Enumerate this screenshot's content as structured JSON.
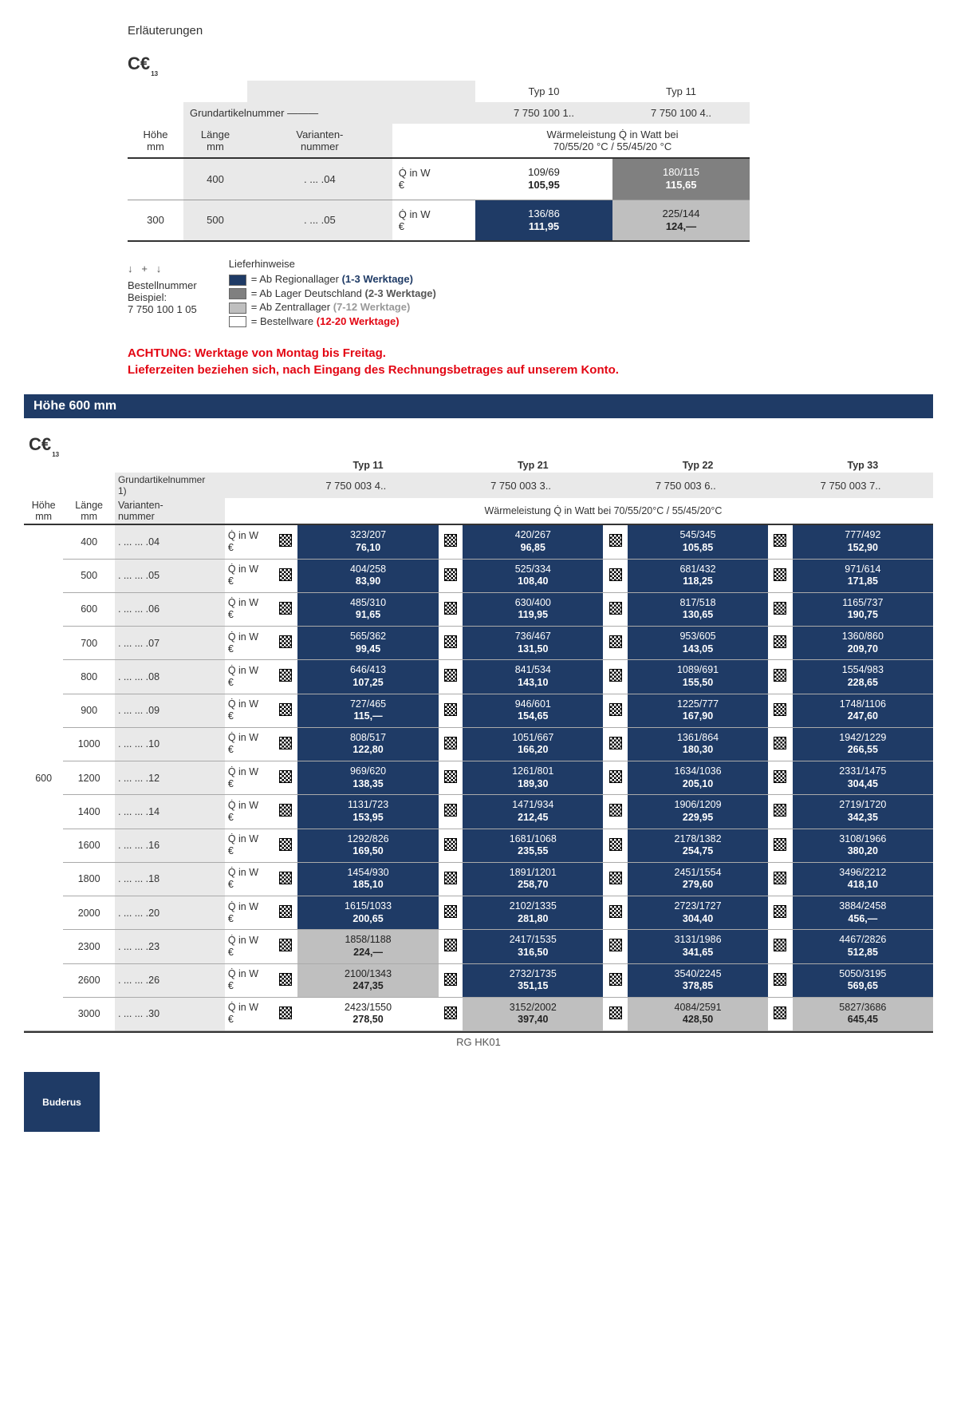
{
  "title": "Erläuterungen",
  "ceMark": "C€",
  "ceSub": "13",
  "exampleTable": {
    "typeHeaders": [
      "Typ 10",
      "Typ 11"
    ],
    "grundLabel": "Grundartikelnummer",
    "grundValues": [
      "7 750 100 1..",
      "7 750 100 4.."
    ],
    "colLabels": {
      "hohe": "Höhe\nmm",
      "lange": "Länge\nmm",
      "variant": "Varianten-\nnummer"
    },
    "heatNote": "Wärmeleistung Q̇ in Watt bei\n70/55/20 °C / 55/45/20 °C",
    "unitLabel": "Q̇ in W\n€",
    "rows": [
      {
        "hohe": "",
        "lange": "400",
        "variant": ". ... .04",
        "cells": [
          {
            "top": "109/69",
            "price": "105,95",
            "style": "cell-white"
          },
          {
            "top": "180/115",
            "price": "115,65",
            "style": "cell-midgray"
          }
        ]
      },
      {
        "hohe": "300",
        "lange": "500",
        "variant": ". ... .05",
        "cells": [
          {
            "top": "136/86",
            "price": "111,95",
            "style": "cell-navy"
          },
          {
            "top": "225/144",
            "price": "124,—",
            "style": "cell-lightgray"
          }
        ]
      }
    ],
    "bestellLabel": "Bestellnummer\nBeispiel:\n7 750 100 1  05",
    "bestellPlus": "+"
  },
  "legend": {
    "title": "Lieferhinweise",
    "items": [
      {
        "sw": "#1f3b66",
        "text": "= Ab Regionallager ",
        "em": "(1-3 Werktage)",
        "cls": "blue"
      },
      {
        "sw": "#808080",
        "text": "= Ab Lager Deutschland ",
        "em": "(2-3 Werktage)",
        "cls": "dgray"
      },
      {
        "sw": "#bfbfbf",
        "text": "= Ab Zentrallager ",
        "em": "(7-12 Werktage)",
        "cls": "lgrayt"
      },
      {
        "sw": "#ffffff",
        "text": "= Bestellware ",
        "em": "(12-20 Werktage)",
        "cls": "red"
      }
    ]
  },
  "warning": "ACHTUNG: Werktage von Montag bis Freitag.\nLieferzeiten beziehen sich, nach Eingang des Rechnungsbetrages auf unserem Konto.",
  "sectionTitle": "Höhe 600 mm",
  "mainTable": {
    "typeHeaders": [
      "Typ 11",
      "Typ 21",
      "Typ 22",
      "Typ 33"
    ],
    "grundLabel": "Grundartikelnummer\n1)",
    "grundValues": [
      "7 750 003 4..",
      "7 750 003 3..",
      "7 750 003 6..",
      "7 750 003 7.."
    ],
    "colLabels": {
      "hohe": "Höhe\nmm",
      "lange": "Länge\nmm",
      "variant": "Varianten-\nnummer"
    },
    "heatNote": "Wärmeleistung Q̇ in Watt bei 70/55/20°C / 55/45/20°C",
    "unitLabel": "Q̇ in W\n€",
    "heightValue": "600",
    "rows": [
      {
        "lange": "400",
        "variant": ". ... ... .04",
        "cells": [
          {
            "t": "323/207",
            "p": "76,10",
            "s": "cell-navy"
          },
          {
            "t": "420/267",
            "p": "96,85",
            "s": "cell-navy"
          },
          {
            "t": "545/345",
            "p": "105,85",
            "s": "cell-navy"
          },
          {
            "t": "777/492",
            "p": "152,90",
            "s": "cell-navy"
          }
        ]
      },
      {
        "lange": "500",
        "variant": ". ... ... .05",
        "cells": [
          {
            "t": "404/258",
            "p": "83,90",
            "s": "cell-navy"
          },
          {
            "t": "525/334",
            "p": "108,40",
            "s": "cell-navy"
          },
          {
            "t": "681/432",
            "p": "118,25",
            "s": "cell-navy"
          },
          {
            "t": "971/614",
            "p": "171,85",
            "s": "cell-navy"
          }
        ]
      },
      {
        "lange": "600",
        "variant": ". ... ... .06",
        "cells": [
          {
            "t": "485/310",
            "p": "91,65",
            "s": "cell-navy"
          },
          {
            "t": "630/400",
            "p": "119,95",
            "s": "cell-navy"
          },
          {
            "t": "817/518",
            "p": "130,65",
            "s": "cell-navy"
          },
          {
            "t": "1165/737",
            "p": "190,75",
            "s": "cell-navy"
          }
        ]
      },
      {
        "lange": "700",
        "variant": ". ... ... .07",
        "cells": [
          {
            "t": "565/362",
            "p": "99,45",
            "s": "cell-navy"
          },
          {
            "t": "736/467",
            "p": "131,50",
            "s": "cell-navy"
          },
          {
            "t": "953/605",
            "p": "143,05",
            "s": "cell-navy"
          },
          {
            "t": "1360/860",
            "p": "209,70",
            "s": "cell-navy"
          }
        ]
      },
      {
        "lange": "800",
        "variant": ". ... ... .08",
        "cells": [
          {
            "t": "646/413",
            "p": "107,25",
            "s": "cell-navy"
          },
          {
            "t": "841/534",
            "p": "143,10",
            "s": "cell-navy"
          },
          {
            "t": "1089/691",
            "p": "155,50",
            "s": "cell-navy"
          },
          {
            "t": "1554/983",
            "p": "228,65",
            "s": "cell-navy"
          }
        ]
      },
      {
        "lange": "900",
        "variant": ". ... ... .09",
        "cells": [
          {
            "t": "727/465",
            "p": "115,—",
            "s": "cell-navy"
          },
          {
            "t": "946/601",
            "p": "154,65",
            "s": "cell-navy"
          },
          {
            "t": "1225/777",
            "p": "167,90",
            "s": "cell-navy"
          },
          {
            "t": "1748/1106",
            "p": "247,60",
            "s": "cell-navy"
          }
        ]
      },
      {
        "lange": "1000",
        "variant": ". ... ... .10",
        "cells": [
          {
            "t": "808/517",
            "p": "122,80",
            "s": "cell-navy"
          },
          {
            "t": "1051/667",
            "p": "166,20",
            "s": "cell-navy"
          },
          {
            "t": "1361/864",
            "p": "180,30",
            "s": "cell-navy"
          },
          {
            "t": "1942/1229",
            "p": "266,55",
            "s": "cell-navy"
          }
        ]
      },
      {
        "lange": "1200",
        "variant": ". ... ... .12",
        "cells": [
          {
            "t": "969/620",
            "p": "138,35",
            "s": "cell-navy"
          },
          {
            "t": "1261/801",
            "p": "189,30",
            "s": "cell-navy"
          },
          {
            "t": "1634/1036",
            "p": "205,10",
            "s": "cell-navy"
          },
          {
            "t": "2331/1475",
            "p": "304,45",
            "s": "cell-navy"
          }
        ]
      },
      {
        "lange": "1400",
        "variant": ". ... ... .14",
        "cells": [
          {
            "t": "1131/723",
            "p": "153,95",
            "s": "cell-navy"
          },
          {
            "t": "1471/934",
            "p": "212,45",
            "s": "cell-navy"
          },
          {
            "t": "1906/1209",
            "p": "229,95",
            "s": "cell-navy"
          },
          {
            "t": "2719/1720",
            "p": "342,35",
            "s": "cell-navy"
          }
        ]
      },
      {
        "lange": "1600",
        "variant": ". ... ... .16",
        "cells": [
          {
            "t": "1292/826",
            "p": "169,50",
            "s": "cell-navy"
          },
          {
            "t": "1681/1068",
            "p": "235,55",
            "s": "cell-navy"
          },
          {
            "t": "2178/1382",
            "p": "254,75",
            "s": "cell-navy"
          },
          {
            "t": "3108/1966",
            "p": "380,20",
            "s": "cell-navy"
          }
        ]
      },
      {
        "lange": "1800",
        "variant": ". ... ... .18",
        "cells": [
          {
            "t": "1454/930",
            "p": "185,10",
            "s": "cell-navy"
          },
          {
            "t": "1891/1201",
            "p": "258,70",
            "s": "cell-navy"
          },
          {
            "t": "2451/1554",
            "p": "279,60",
            "s": "cell-navy"
          },
          {
            "t": "3496/2212",
            "p": "418,10",
            "s": "cell-navy"
          }
        ]
      },
      {
        "lange": "2000",
        "variant": ". ... ... .20",
        "cells": [
          {
            "t": "1615/1033",
            "p": "200,65",
            "s": "cell-navy"
          },
          {
            "t": "2102/1335",
            "p": "281,80",
            "s": "cell-navy"
          },
          {
            "t": "2723/1727",
            "p": "304,40",
            "s": "cell-navy"
          },
          {
            "t": "3884/2458",
            "p": "456,—",
            "s": "cell-navy"
          }
        ]
      },
      {
        "lange": "2300",
        "variant": ". ... ... .23",
        "cells": [
          {
            "t": "1858/1188",
            "p": "224,—",
            "s": "cell-lightgray"
          },
          {
            "t": "2417/1535",
            "p": "316,50",
            "s": "cell-navy"
          },
          {
            "t": "3131/1986",
            "p": "341,65",
            "s": "cell-navy"
          },
          {
            "t": "4467/2826",
            "p": "512,85",
            "s": "cell-navy"
          }
        ]
      },
      {
        "lange": "2600",
        "variant": ". ... ... .26",
        "cells": [
          {
            "t": "2100/1343",
            "p": "247,35",
            "s": "cell-lightgray"
          },
          {
            "t": "2732/1735",
            "p": "351,15",
            "s": "cell-navy"
          },
          {
            "t": "3540/2245",
            "p": "378,85",
            "s": "cell-navy"
          },
          {
            "t": "5050/3195",
            "p": "569,65",
            "s": "cell-navy"
          }
        ]
      },
      {
        "lange": "3000",
        "variant": ". ... ... .30",
        "cells": [
          {
            "t": "2423/1550",
            "p": "278,50",
            "s": "cell-white"
          },
          {
            "t": "3152/2002",
            "p": "397,40",
            "s": "cell-lightgray"
          },
          {
            "t": "4084/2591",
            "p": "428,50",
            "s": "cell-lightgray"
          },
          {
            "t": "5827/3686",
            "p": "645,45",
            "s": "cell-lightgray"
          }
        ]
      }
    ]
  },
  "footerCode": "RG HK01",
  "logo": "Buderus"
}
